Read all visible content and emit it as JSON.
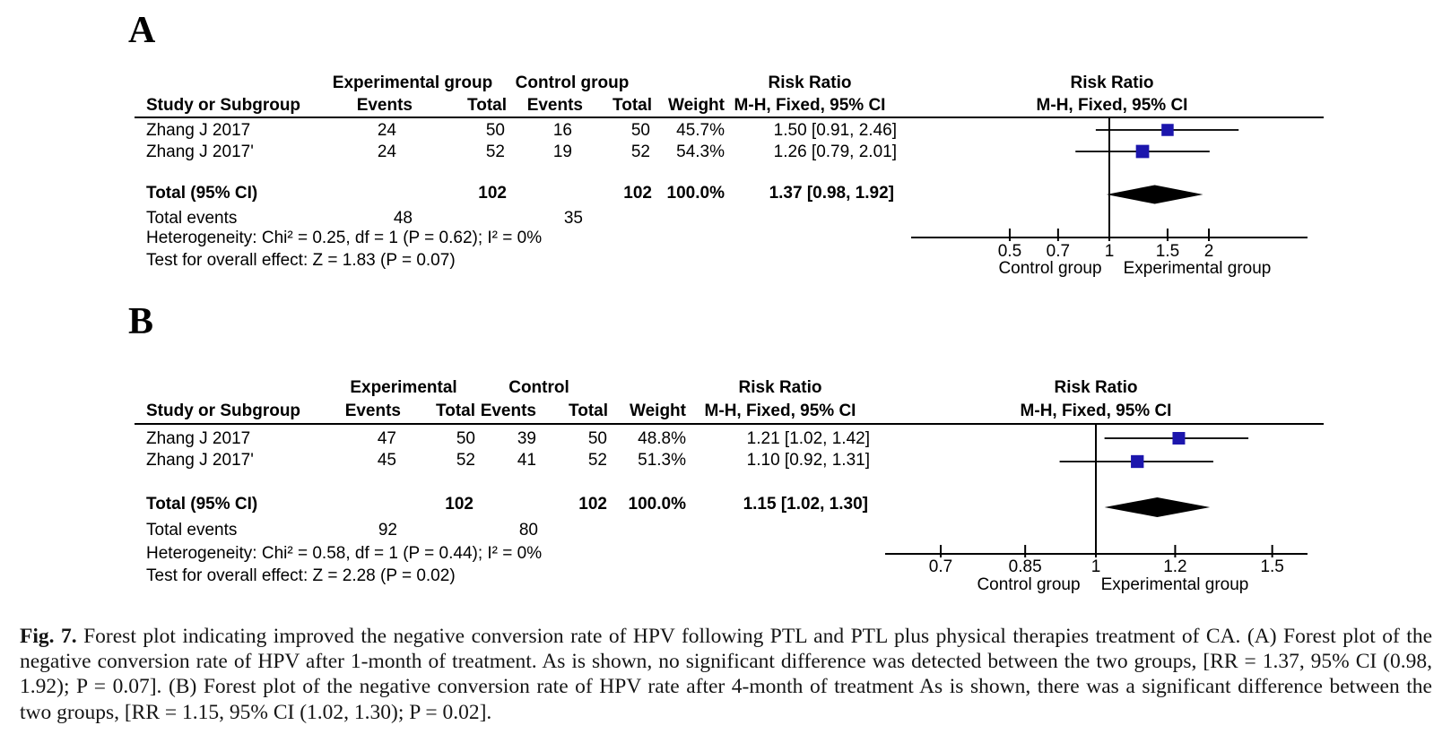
{
  "panels": [
    {
      "label": "A",
      "columns": {
        "group1": "Experimental group",
        "group2": "Control group",
        "study": "Study or Subgroup",
        "events": "Events",
        "total": "Total",
        "weight": "Weight",
        "rr": "Risk Ratio",
        "method": "M-H, Fixed, 95% CI"
      },
      "studies": [
        {
          "name": "Zhang J 2017",
          "e_events": "24",
          "e_total": "50",
          "c_events": "16",
          "c_total": "50",
          "weight": "45.7%",
          "rr_text": "1.50 [0.91, 2.46]"
        },
        {
          "name": "Zhang J 2017'",
          "e_events": "24",
          "e_total": "52",
          "c_events": "19",
          "c_total": "52",
          "weight": "54.3%",
          "rr_text": "1.26 [0.79, 2.01]"
        }
      ],
      "total_row": {
        "label": "Total (95% CI)",
        "e_total": "102",
        "c_total": "102",
        "weight": "100.0%",
        "rr_text": "1.37 [0.98, 1.92]"
      },
      "events_row": {
        "label": "Total events",
        "e": "48",
        "c": "35"
      },
      "heterogeneity": "Heterogeneity: Chi² = 0.25, df = 1 (P = 0.62); I² = 0%",
      "overall": "Test for overall effect: Z = 1.83 (P = 0.07)"
    },
    {
      "label": "B",
      "columns": {
        "group1": "Experimental",
        "group2": "Control",
        "study": "Study or Subgroup",
        "events": "Events",
        "total": "Total",
        "weight": "Weight",
        "rr": "Risk Ratio",
        "method": "M-H, Fixed, 95% CI"
      },
      "studies": [
        {
          "name": "Zhang J 2017",
          "e_events": "47",
          "e_total": "50",
          "c_events": "39",
          "c_total": "50",
          "weight": "48.8%",
          "rr_text": "1.21 [1.02, 1.42]"
        },
        {
          "name": "Zhang J 2017'",
          "e_events": "45",
          "e_total": "52",
          "c_events": "41",
          "c_total": "52",
          "weight": "51.3%",
          "rr_text": "1.10 [0.92, 1.31]"
        }
      ],
      "total_row": {
        "label": "Total (95% CI)",
        "e_total": "102",
        "c_total": "102",
        "weight": "100.0%",
        "rr_text": "1.15 [1.02, 1.30]"
      },
      "events_row": {
        "label": "Total events",
        "e": "92",
        "c": "80"
      },
      "heterogeneity": "Heterogeneity: Chi² = 0.58, df = 1 (P = 0.44); I² = 0%",
      "overall": "Test for overall effect: Z = 2.28 (P = 0.02)"
    }
  ],
  "chart_data": [
    {
      "type": "forest",
      "panel": "A",
      "effect_measure": "Risk Ratio",
      "method": "M-H, Fixed, 95% CI",
      "x_scale": "log",
      "studies": [
        {
          "name": "Zhang J 2017",
          "rr": 1.5,
          "ci_low": 0.91,
          "ci_high": 2.46,
          "weight_pct": 45.7
        },
        {
          "name": "Zhang J 2017'",
          "rr": 1.26,
          "ci_low": 0.79,
          "ci_high": 2.01,
          "weight_pct": 54.3
        }
      ],
      "total": {
        "rr": 1.37,
        "ci_low": 0.98,
        "ci_high": 1.92
      },
      "axis_ticks": [
        0.5,
        0.7,
        1,
        1.5,
        2
      ],
      "axis_label_left": "Control group",
      "axis_label_right": "Experimental group"
    },
    {
      "type": "forest",
      "panel": "B",
      "effect_measure": "Risk Ratio",
      "method": "M-H, Fixed, 95% CI",
      "x_scale": "log",
      "studies": [
        {
          "name": "Zhang J 2017",
          "rr": 1.21,
          "ci_low": 1.02,
          "ci_high": 1.42,
          "weight_pct": 48.8
        },
        {
          "name": "Zhang J 2017'",
          "rr": 1.1,
          "ci_low": 0.92,
          "ci_high": 1.31,
          "weight_pct": 51.3
        }
      ],
      "total": {
        "rr": 1.15,
        "ci_low": 1.02,
        "ci_high": 1.3
      },
      "axis_ticks": [
        0.7,
        0.85,
        1,
        1.2,
        1.5
      ],
      "axis_label_left": "Control group",
      "axis_label_right": "Experimental group"
    }
  ],
  "colors": {
    "square": "#1c16ad",
    "diamond": "#000000",
    "line": "#000000"
  },
  "caption": {
    "tag": "Fig. 7.",
    "lines": [
      "Forest plot indicating improved the negative conversion rate of HPV following PTL and PTL plus physical therapies treatment of CA. (A) Forest plot of the",
      "negative conversion rate of HPV after 1-month of treatment. As is shown, no significant difference was detected between the two groups, [RR = 1.37, 95% CI (0.98,",
      "1.92); P = 0.07]. (B) Forest plot of the negative conversion rate of HPV rate after 4-month of treatment As is shown, there was a significant difference between the",
      "two groups, [RR = 1.15, 95% CI (1.02, 1.30); P = 0.02]."
    ]
  }
}
